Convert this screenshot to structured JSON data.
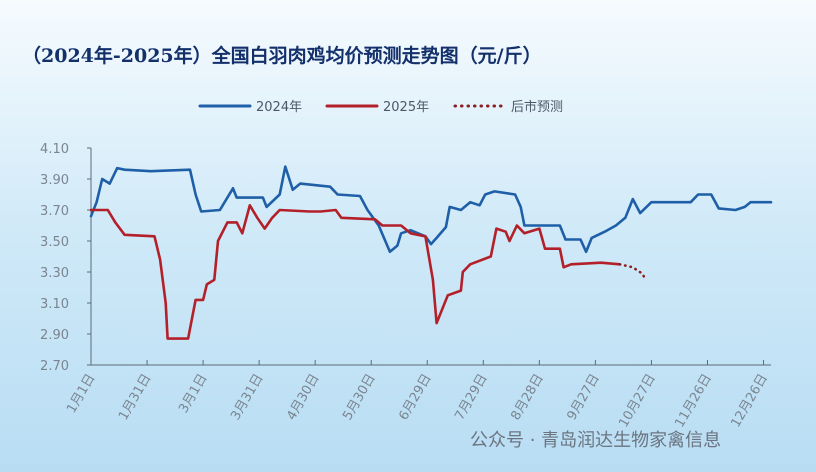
{
  "chart_data": {
    "type": "line",
    "title": "（2024年-2025年）全国白羽肉鸡均价预测走势图（元/斤）",
    "annotation": "公众号 · 青岛润达生物家禽信息",
    "xlim": [
      0,
      364
    ],
    "xticks": [
      {
        "value": 0,
        "label": "1月1日"
      },
      {
        "value": 30,
        "label": "1月31日"
      },
      {
        "value": 60,
        "label": "3月1日"
      },
      {
        "value": 90,
        "label": "3月31日"
      },
      {
        "value": 120,
        "label": "4月30日"
      },
      {
        "value": 150,
        "label": "5月30日"
      },
      {
        "value": 180,
        "label": "6月29日"
      },
      {
        "value": 210,
        "label": "7月29日"
      },
      {
        "value": 240,
        "label": "8月28日"
      },
      {
        "value": 270,
        "label": "9月27日"
      },
      {
        "value": 300,
        "label": "10月27日"
      },
      {
        "value": 330,
        "label": "11月26日"
      },
      {
        "value": 360,
        "label": "12月26日"
      }
    ],
    "ylim": [
      2.7,
      4.1
    ],
    "yticks": [
      {
        "value": 2.7,
        "label": "2.70"
      },
      {
        "value": 2.9,
        "label": "2.90"
      },
      {
        "value": 3.1,
        "label": "3.10"
      },
      {
        "value": 3.3,
        "label": "3.30"
      },
      {
        "value": 3.5,
        "label": "3.50"
      },
      {
        "value": 3.7,
        "label": "3.70"
      },
      {
        "value": 3.9,
        "label": "3.90"
      },
      {
        "value": 4.1,
        "label": "4.10"
      }
    ],
    "legend": "top",
    "series": [
      {
        "name": "2024年",
        "color": "#1f5fa8",
        "line_style": "solid",
        "x": [
          0,
          3,
          6,
          10,
          14,
          18,
          32,
          53,
          56,
          59,
          69,
          73,
          76,
          78,
          92,
          94,
          101,
          104,
          108,
          112,
          128,
          132,
          144,
          148,
          154,
          160,
          164,
          166,
          171,
          179,
          182,
          185,
          190,
          192,
          198,
          203,
          208,
          211,
          216,
          227,
          230,
          232,
          251,
          254,
          262,
          265,
          268,
          275,
          281,
          286,
          290,
          294,
          300,
          321,
          325,
          332,
          336,
          345,
          350,
          353,
          364
        ],
        "values": [
          3.66,
          3.75,
          3.9,
          3.87,
          3.97,
          3.96,
          3.95,
          3.96,
          3.8,
          3.69,
          3.7,
          3.78,
          3.84,
          3.78,
          3.78,
          3.72,
          3.8,
          3.98,
          3.83,
          3.87,
          3.85,
          3.8,
          3.79,
          3.7,
          3.6,
          3.43,
          3.47,
          3.55,
          3.57,
          3.53,
          3.48,
          3.52,
          3.59,
          3.72,
          3.7,
          3.75,
          3.73,
          3.8,
          3.82,
          3.8,
          3.72,
          3.6,
          3.6,
          3.51,
          3.51,
          3.43,
          3.52,
          3.56,
          3.6,
          3.65,
          3.77,
          3.68,
          3.75,
          3.75,
          3.8,
          3.8,
          3.71,
          3.7,
          3.72,
          3.75,
          3.75
        ]
      },
      {
        "name": "2025年",
        "color": "#b3202a",
        "line_style": "solid",
        "x": [
          0,
          9,
          13,
          18,
          34,
          37,
          40,
          41,
          45,
          52,
          56,
          60,
          62,
          66,
          68,
          73,
          78,
          81,
          85,
          89,
          93,
          97,
          101,
          117,
          123,
          131,
          134,
          152,
          156,
          166,
          171,
          179,
          183,
          185,
          191,
          198,
          199,
          203,
          214,
          217,
          222,
          224,
          228,
          232,
          240,
          243,
          251,
          253,
          257,
          273,
          283
        ],
        "values": [
          3.7,
          3.7,
          3.62,
          3.54,
          3.53,
          3.38,
          3.1,
          2.87,
          2.87,
          2.87,
          3.12,
          3.12,
          3.22,
          3.25,
          3.5,
          3.62,
          3.62,
          3.55,
          3.73,
          3.65,
          3.58,
          3.65,
          3.7,
          3.69,
          3.69,
          3.7,
          3.65,
          3.64,
          3.6,
          3.6,
          3.55,
          3.53,
          3.25,
          2.97,
          3.15,
          3.18,
          3.3,
          3.35,
          3.4,
          3.58,
          3.56,
          3.5,
          3.6,
          3.55,
          3.58,
          3.45,
          3.45,
          3.33,
          3.35,
          3.36,
          3.35
        ]
      },
      {
        "name": "后市预测",
        "color": "#8a1c22",
        "line_style": "dotted",
        "x": [
          283,
          290,
          295,
          297
        ],
        "values": [
          3.35,
          3.33,
          3.29,
          3.25
        ]
      }
    ]
  }
}
